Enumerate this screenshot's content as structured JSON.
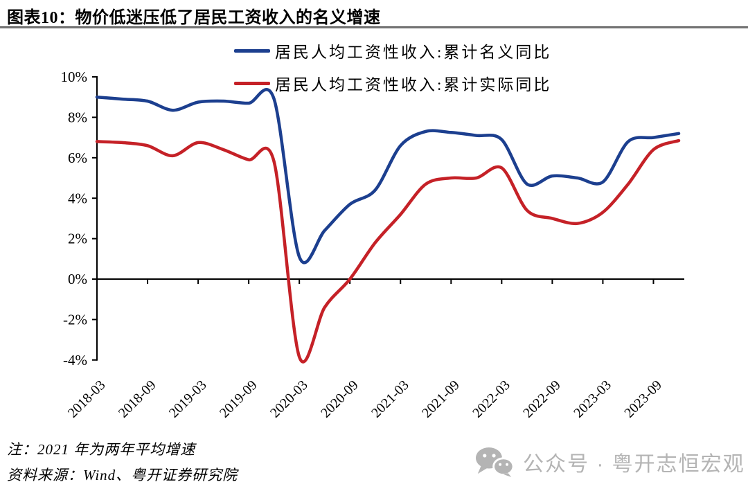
{
  "page": {
    "title": "图表10：物价低迷压低了居民工资收入的名义增速",
    "note": "注：2021 年为两年平均增速",
    "source": "资料来源：Wind、粤开证券研究院",
    "watermark": {
      "icon": "wechat-icon",
      "text": "公众号 · 粤开志恒宏观"
    }
  },
  "legend": [
    {
      "label": "居民人均工资性收入:累计名义同比",
      "color": "#1c3f8f"
    },
    {
      "label": "居民人均工资性收入:累计实际同比",
      "color": "#c52127"
    }
  ],
  "chart_data": {
    "type": "line",
    "title": "物价低迷压低了居民工资收入的名义增速",
    "x": [
      "2018-03",
      "2018-06",
      "2018-09",
      "2018-12",
      "2019-03",
      "2019-06",
      "2019-09",
      "2019-12",
      "2020-03",
      "2020-06",
      "2020-09",
      "2020-12",
      "2021-03",
      "2021-06",
      "2021-09",
      "2021-12",
      "2022-03",
      "2022-06",
      "2022-09",
      "2022-12",
      "2023-03",
      "2023-06",
      "2023-09",
      "2023-12"
    ],
    "series": [
      {
        "name": "居民人均工资性收入:累计名义同比",
        "color": "#1c3f8f",
        "values": [
          9.0,
          8.9,
          8.8,
          8.35,
          8.75,
          8.8,
          8.7,
          8.9,
          1.1,
          2.4,
          3.7,
          4.4,
          6.6,
          7.3,
          7.25,
          7.1,
          6.9,
          4.7,
          5.1,
          5.0,
          4.8,
          6.8,
          7.0,
          7.2
        ]
      },
      {
        "name": "居民人均工资性收入:累计实际同比",
        "color": "#c52127",
        "values": [
          6.8,
          6.75,
          6.6,
          6.1,
          6.75,
          6.4,
          5.9,
          5.8,
          -3.85,
          -1.4,
          0.0,
          1.8,
          3.2,
          4.7,
          5.0,
          5.0,
          5.5,
          3.4,
          3.0,
          2.75,
          3.3,
          4.7,
          6.4,
          6.85
        ]
      }
    ],
    "ylim": [
      -4,
      10
    ],
    "y_ticks": [
      10,
      8,
      6,
      4,
      2,
      0,
      -2,
      -4
    ],
    "y_tick_labels": [
      "10%",
      "8%",
      "6%",
      "4%",
      "2%",
      "0%",
      "-2%",
      "-4%"
    ],
    "x_tick_labels": [
      "2018-03",
      "2018-09",
      "2019-03",
      "2019-09",
      "2020-03",
      "2020-09",
      "2021-03",
      "2021-09",
      "2022-03",
      "2022-09",
      "2023-03",
      "2023-09"
    ],
    "grid": false,
    "legend_position": "top",
    "unit": "%"
  }
}
